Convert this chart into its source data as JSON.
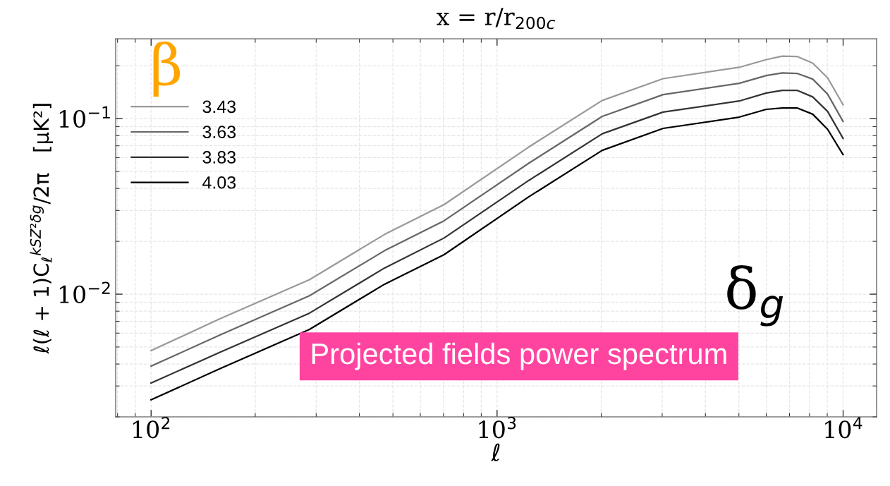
{
  "chart_data": {
    "type": "line",
    "title": "x = r/r$_{200c}$",
    "xlabel": "ℓ",
    "ylabel": "ℓ(ℓ + 1)C$_{ℓ}$$^{kSZ²δg}$/2π   [μK²]",
    "x": [
      100,
      158,
      287,
      473,
      703,
      1236,
      2014,
      3020,
      5010,
      6000,
      6670,
      7360,
      8170,
      9020,
      10000
    ],
    "series": [
      {
        "name": "3.43",
        "color": "#999999",
        "values": [
          0.00477,
          0.00723,
          0.0121,
          0.0219,
          0.0324,
          0.069,
          0.127,
          0.169,
          0.196,
          0.217,
          0.227,
          0.226,
          0.207,
          0.171,
          0.12
        ]
      },
      {
        "name": "3.63",
        "color": "#666666",
        "values": [
          0.00389,
          0.00585,
          0.0098,
          0.0177,
          0.0262,
          0.0558,
          0.103,
          0.137,
          0.159,
          0.176,
          0.182,
          0.181,
          0.168,
          0.138,
          0.0964
        ]
      },
      {
        "name": "3.83",
        "color": "#333333",
        "values": [
          0.00312,
          0.00466,
          0.0078,
          0.0141,
          0.0209,
          0.0445,
          0.082,
          0.109,
          0.126,
          0.14,
          0.145,
          0.145,
          0.133,
          0.11,
          0.0772
        ]
      },
      {
        "name": "4.03",
        "color": "#000000",
        "values": [
          0.0025,
          0.00376,
          0.0063,
          0.0114,
          0.0168,
          0.0359,
          0.066,
          0.088,
          0.102,
          0.113,
          0.115,
          0.115,
          0.106,
          0.087,
          0.0624
        ]
      }
    ],
    "log": "xy",
    "xlim": [
      79,
      12500
    ],
    "ylim": [
      0.002,
      0.285
    ],
    "xticks": [
      {
        "value": 100,
        "label": "10$^{2}$"
      },
      {
        "value": 1000,
        "label": "10$^{3}$"
      },
      {
        "value": 10000,
        "label": "10$^{4}$"
      }
    ],
    "yticks": [
      {
        "value": 0.01,
        "label": "10$^{−2}$"
      },
      {
        "value": 0.1,
        "label": "10$^{−1}$"
      }
    ],
    "grid": true,
    "legend": "top left",
    "line_style": "solid",
    "marker": "none",
    "annotations": [
      "β",
      "δ$_{g}$",
      "Projected fields power spectrum"
    ]
  }
}
